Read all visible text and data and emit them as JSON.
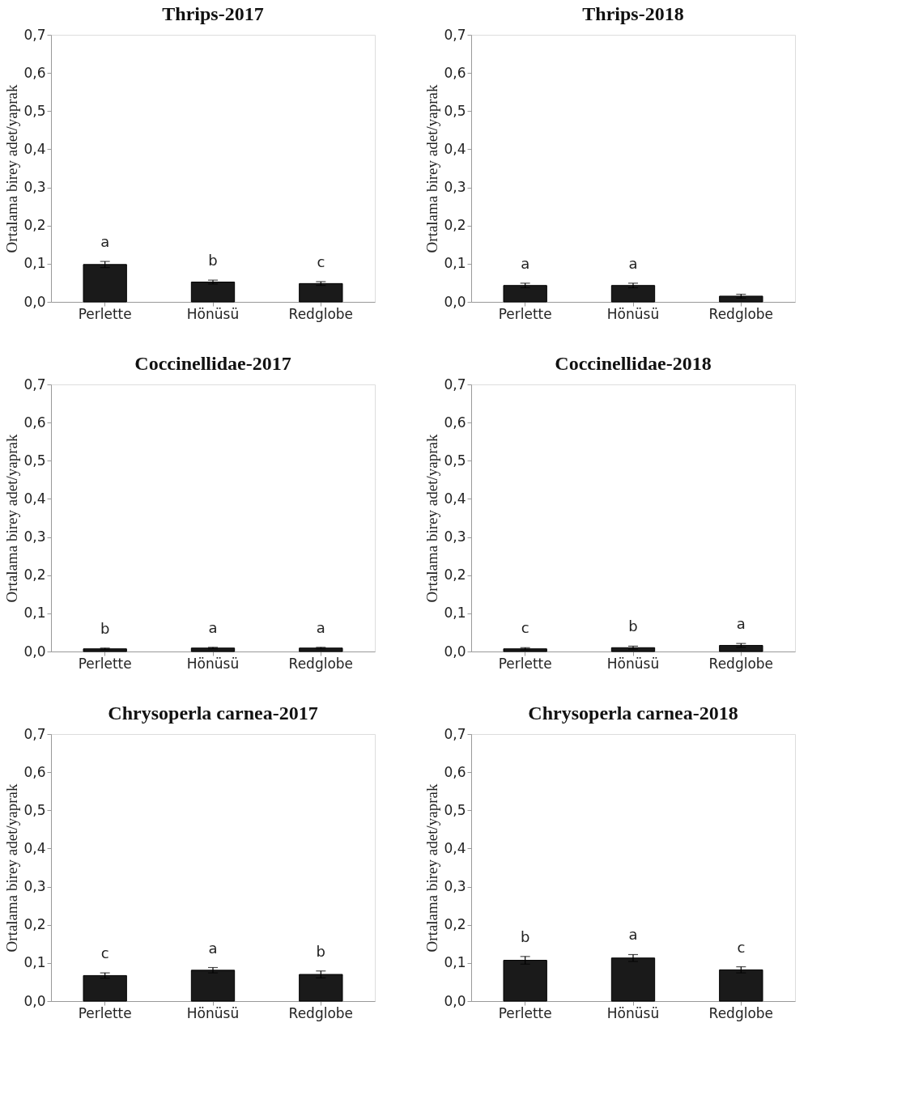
{
  "chart_data": [
    {
      "type": "bar",
      "title": "Thrips-2017",
      "ylabel": "Ortalama birey adet/yaprak",
      "categories": [
        "Perlette",
        "Hönüsü",
        "Redglobe"
      ],
      "values": [
        0.098,
        0.052,
        0.048
      ],
      "errors": [
        0.008,
        0.005,
        0.005
      ],
      "color": "#1a1a1a",
      "ylim": [
        0,
        0.7
      ],
      "yticks": [
        {
          "value": 0,
          "label": "0,0"
        },
        {
          "value": 0.1,
          "label": "0,1"
        },
        {
          "value": 0.2,
          "label": "0,2"
        },
        {
          "value": 0.3,
          "label": "0,3"
        },
        {
          "value": 0.4,
          "label": "0,4"
        },
        {
          "value": 0.5,
          "label": "0,5"
        },
        {
          "value": 0.6,
          "label": "0,6"
        },
        {
          "value": 0.7,
          "label": "0,7"
        }
      ],
      "grid": false,
      "annotations": [
        "a",
        "b",
        "c"
      ]
    },
    {
      "type": "bar",
      "title": "Thrips-2018",
      "ylabel": "Ortalama birey adet/yaprak",
      "categories": [
        "Perlette",
        "Hönüsü",
        "Redglobe"
      ],
      "values": [
        0.043,
        0.043,
        0.015
      ],
      "errors": [
        0.006,
        0.006,
        0.005
      ],
      "color": "#1a1a1a",
      "ylim": [
        0,
        0.7
      ],
      "yticks": [
        {
          "value": 0,
          "label": "0,0"
        },
        {
          "value": 0.1,
          "label": "0,1"
        },
        {
          "value": 0.2,
          "label": "0,2"
        },
        {
          "value": 0.3,
          "label": "0,3"
        },
        {
          "value": 0.4,
          "label": "0,4"
        },
        {
          "value": 0.5,
          "label": "0,5"
        },
        {
          "value": 0.6,
          "label": "0,6"
        },
        {
          "value": 0.7,
          "label": "0,7"
        }
      ],
      "grid": false,
      "annotations": [
        "a",
        "a"
      ]
    },
    {
      "type": "bar",
      "title": "Coccinellidae-2017",
      "ylabel": "Ortalama birey adet/yaprak",
      "categories": [
        "Perlette",
        "Hönüsü",
        "Redglobe"
      ],
      "values": [
        0.007,
        0.009,
        0.009
      ],
      "errors": [
        0.002,
        0.002,
        0.002
      ],
      "color": "#1a1a1a",
      "ylim": [
        0,
        0.7
      ],
      "yticks": [
        {
          "value": 0,
          "label": "0,0"
        },
        {
          "value": 0.1,
          "label": "0,1"
        },
        {
          "value": 0.2,
          "label": "0,2"
        },
        {
          "value": 0.3,
          "label": "0,3"
        },
        {
          "value": 0.4,
          "label": "0,4"
        },
        {
          "value": 0.5,
          "label": "0,5"
        },
        {
          "value": 0.6,
          "label": "0,6"
        },
        {
          "value": 0.7,
          "label": "0,7"
        }
      ],
      "grid": false,
      "annotations": [
        "b",
        "a",
        "a"
      ]
    },
    {
      "type": "bar",
      "title": "Coccinellidae-2018",
      "ylabel": "Ortalama birey adet/yaprak",
      "categories": [
        "Perlette",
        "Hönüsü",
        "Redglobe"
      ],
      "values": [
        0.007,
        0.01,
        0.016
      ],
      "errors": [
        0.003,
        0.004,
        0.005
      ],
      "color": "#1a1a1a",
      "ylim": [
        0,
        0.7
      ],
      "yticks": [
        {
          "value": 0,
          "label": "0,0"
        },
        {
          "value": 0.1,
          "label": "0,1"
        },
        {
          "value": 0.2,
          "label": "0,2"
        },
        {
          "value": 0.3,
          "label": "0,3"
        },
        {
          "value": 0.4,
          "label": "0,4"
        },
        {
          "value": 0.5,
          "label": "0,5"
        },
        {
          "value": 0.6,
          "label": "0,6"
        },
        {
          "value": 0.7,
          "label": "0,7"
        }
      ],
      "grid": false,
      "annotations": [
        "c",
        "b",
        "a"
      ]
    },
    {
      "type": "bar",
      "title": "Chrysoperla carnea-2017",
      "ylabel": "Ortalama birey adet/yaprak",
      "categories": [
        "Perlette",
        "Hönüsü",
        "Redglobe"
      ],
      "values": [
        0.067,
        0.081,
        0.07
      ],
      "errors": [
        0.007,
        0.007,
        0.009
      ],
      "color": "#1a1a1a",
      "ylim": [
        0,
        0.7
      ],
      "yticks": [
        {
          "value": 0,
          "label": "0,0"
        },
        {
          "value": 0.1,
          "label": "0,1"
        },
        {
          "value": 0.2,
          "label": "0,2"
        },
        {
          "value": 0.3,
          "label": "0,3"
        },
        {
          "value": 0.4,
          "label": "0,4"
        },
        {
          "value": 0.5,
          "label": "0,5"
        },
        {
          "value": 0.6,
          "label": "0,6"
        },
        {
          "value": 0.7,
          "label": "0,7"
        }
      ],
      "grid": false,
      "annotations": [
        "c",
        "a",
        "b"
      ]
    },
    {
      "type": "bar",
      "title": "Chrysoperla carnea-2018",
      "ylabel": "Ortalama birey adet/yaprak",
      "categories": [
        "Perlette",
        "Hönüsü",
        "Redglobe"
      ],
      "values": [
        0.107,
        0.113,
        0.082
      ],
      "errors": [
        0.01,
        0.009,
        0.008
      ],
      "color": "#1a1a1a",
      "ylim": [
        0,
        0.7
      ],
      "yticks": [
        {
          "value": 0,
          "label": "0,0"
        },
        {
          "value": 0.1,
          "label": "0,1"
        },
        {
          "value": 0.2,
          "label": "0,2"
        },
        {
          "value": 0.3,
          "label": "0,3"
        },
        {
          "value": 0.4,
          "label": "0,4"
        },
        {
          "value": 0.5,
          "label": "0,5"
        },
        {
          "value": 0.6,
          "label": "0,6"
        },
        {
          "value": 0.7,
          "label": "0,7"
        }
      ],
      "grid": false,
      "annotations": [
        "b",
        "a",
        "c"
      ]
    }
  ]
}
